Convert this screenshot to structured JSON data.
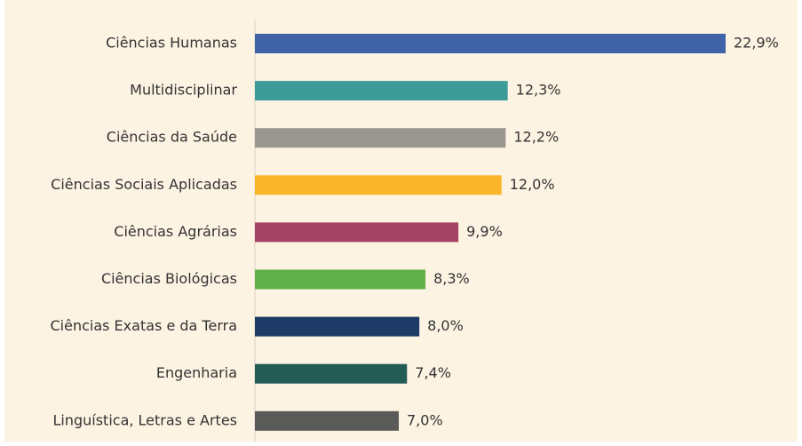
{
  "chart_data": {
    "type": "bar",
    "orientation": "horizontal",
    "categories": [
      "Ciências Humanas",
      "Multidisciplinar",
      "Ciências da Saúde",
      "Ciências Sociais Aplicadas",
      "Ciências Agrárias",
      "Ciências Biológicas",
      "Ciências Exatas e da Terra",
      "Engenharia",
      "Linguística, Letras e Artes"
    ],
    "values": [
      22.9,
      12.3,
      12.2,
      12.0,
      9.9,
      8.3,
      8.0,
      7.4,
      7.0
    ],
    "value_labels": [
      "22,9%",
      "12,3%",
      "12,2%",
      "12,0%",
      "9,9%",
      "8,3%",
      "8,0%",
      "7,4%",
      "7,0%"
    ],
    "colors": [
      "#3f63a6",
      "#3d9c98",
      "#9a9790",
      "#fbb52a",
      "#a34263",
      "#62b04a",
      "#1d3b66",
      "#235b55",
      "#5a5a58"
    ]
  }
}
